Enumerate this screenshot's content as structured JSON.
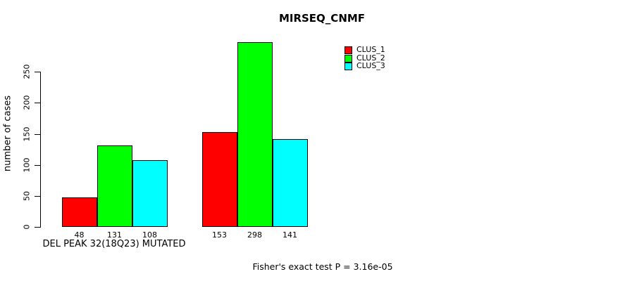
{
  "figure": {
    "title": "MIRSEQ_CNMF",
    "footnote": "Fisher's exact test P = 3.16e-05"
  },
  "chart_data": {
    "type": "bar",
    "title": "MIRSEQ_CNMF",
    "xlabel": "DEL PEAK 32(18Q23) MUTATED",
    "ylabel": "number of cases",
    "ylim": [
      0,
      300
    ],
    "yticks": [
      0,
      50,
      100,
      150,
      200,
      250
    ],
    "grid": false,
    "legend_position": "top-right",
    "show_bar_values": true,
    "groups": 2,
    "series": [
      {
        "name": "CLUS_1",
        "color": "#ff0000",
        "values": [
          48,
          153
        ]
      },
      {
        "name": "CLUS_2",
        "color": "#00ff00",
        "values": [
          131,
          298
        ]
      },
      {
        "name": "CLUS_3",
        "color": "#00ffff",
        "values": [
          108,
          141
        ]
      }
    ],
    "annotation": "Fisher's exact test P = 3.16e-05"
  }
}
